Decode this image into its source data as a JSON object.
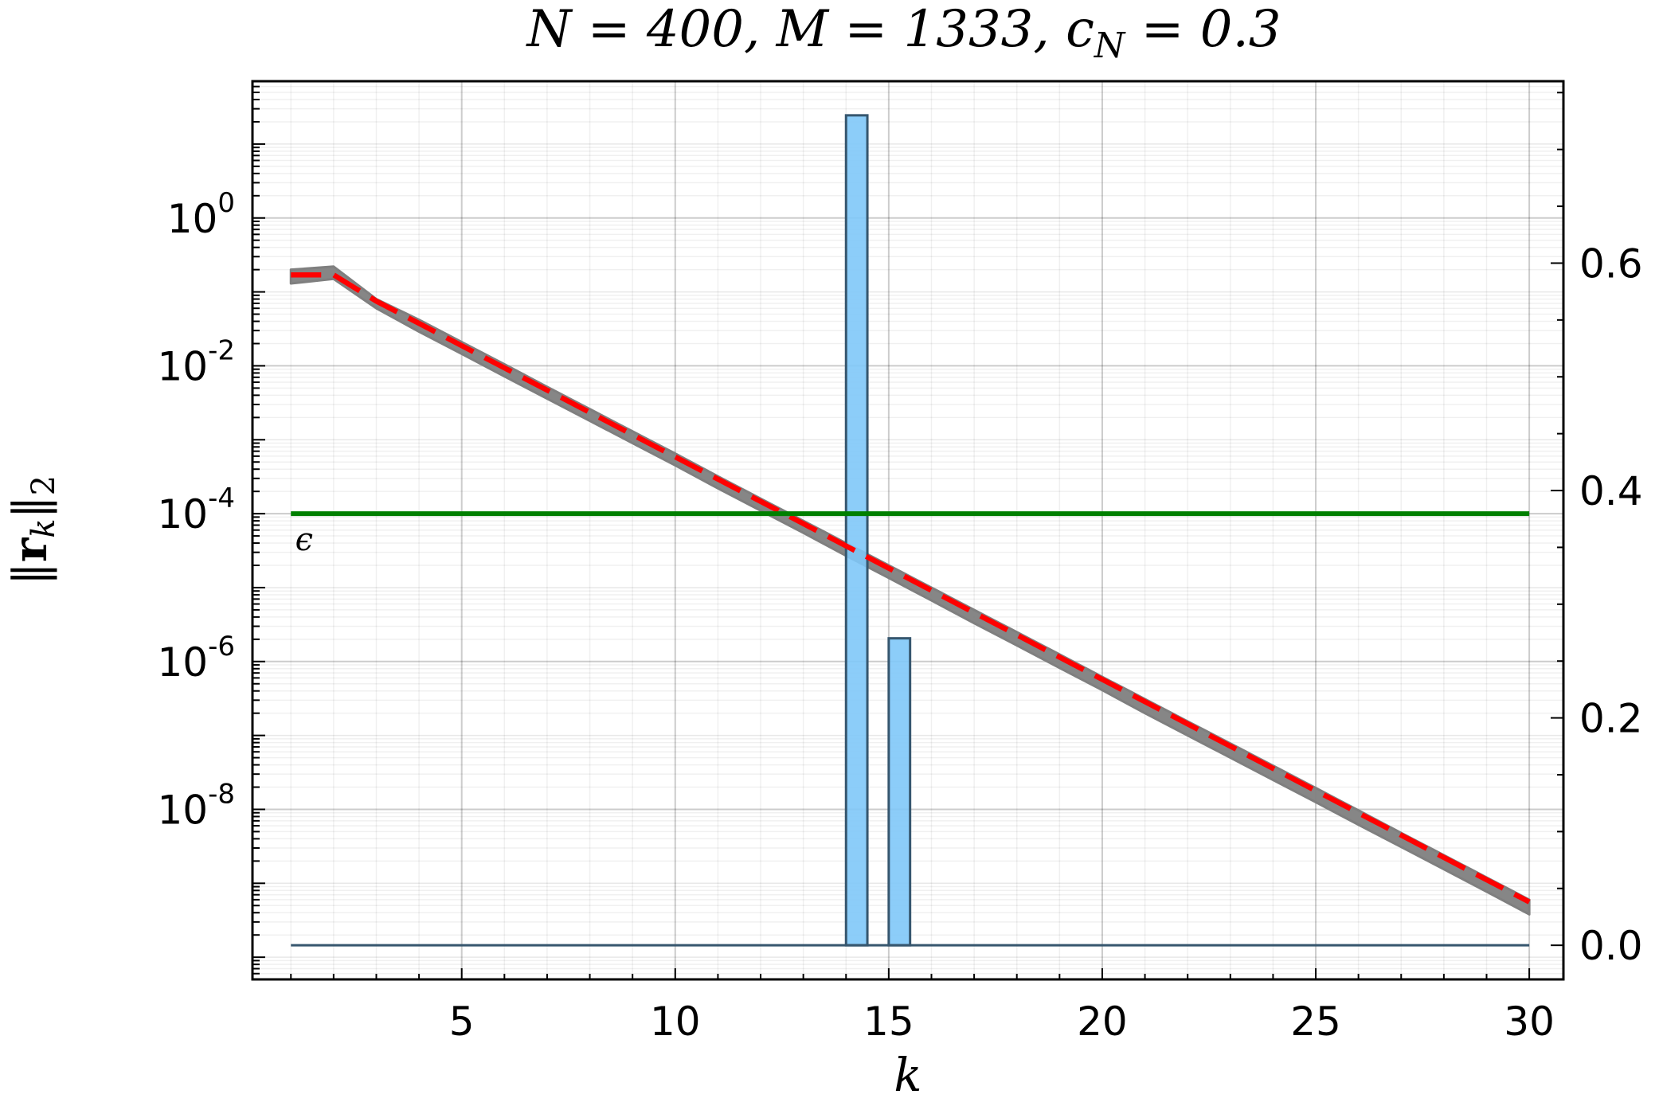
{
  "chart_data": {
    "type": "line",
    "title": "N = 400, M = 1333, c_N = 0.3",
    "title_parts": {
      "n": "N = 400, ",
      "m": "M = 1333, ",
      "c": "c",
      "c_sub": "N",
      "c_val": " = 0.3"
    },
    "xlabel": "k",
    "ylabel": "‖r_k‖_2",
    "ylabel_parts": {
      "open": "‖",
      "r": "r",
      "sub": "k",
      "close": "‖",
      "close_sub": "2"
    },
    "xlim": [
      0.1,
      30.8
    ],
    "ylim_log10": [
      -10.3,
      1.85
    ],
    "y_scale": "log",
    "y2lim": [
      -0.03,
      0.76
    ],
    "x_ticks": [
      5,
      10,
      15,
      20,
      25,
      30
    ],
    "x_tick_labels": [
      "5",
      "10",
      "15",
      "20",
      "25",
      "30"
    ],
    "y_ticks_exponents": [
      0,
      -2,
      -4,
      -6,
      -8
    ],
    "y_tick_base": "10",
    "y_tick_exponent_labels": [
      "0",
      "-2",
      "-4",
      "-6",
      "-8"
    ],
    "y2_ticks": [
      0.0,
      0.2,
      0.4,
      0.6
    ],
    "y2_tick_labels": [
      "0.0",
      "0.2",
      "0.4",
      "0.6"
    ],
    "grid": true,
    "epsilon_label": "ϵ",
    "series": [
      {
        "style": "band",
        "color": "#7f7f7f",
        "x": [
          1,
          2,
          3,
          4,
          5,
          6,
          7,
          8,
          9,
          10,
          11,
          12,
          13,
          14,
          15,
          16,
          17,
          18,
          19,
          20,
          21,
          22,
          23,
          24,
          25,
          26,
          27,
          28,
          29,
          30
        ],
        "upper": [
          0.2,
          0.22,
          0.08,
          0.042,
          0.021,
          0.0105,
          0.0052,
          0.0026,
          0.0013,
          0.00065,
          0.00032,
          0.00016,
          8e-05,
          4e-05,
          2e-05,
          1e-05,
          5e-06,
          2.5e-06,
          1.25e-06,
          6.2e-07,
          3.1e-07,
          1.55e-07,
          7.8e-08,
          3.9e-08,
          1.95e-08,
          9.7e-09,
          4.8e-09,
          2.4e-09,
          1.2e-09,
          6e-10
        ],
        "lower": [
          0.13,
          0.15,
          0.06,
          0.029,
          0.0145,
          0.0072,
          0.0036,
          0.0018,
          0.0009,
          0.00045,
          0.00022,
          0.00011,
          5.5e-05,
          2.7e-05,
          1.35e-05,
          6.7e-06,
          3.3e-06,
          1.65e-06,
          8.2e-07,
          4.1e-07,
          2e-07,
          1e-07,
          5e-08,
          2.5e-08,
          1.25e-08,
          6.2e-09,
          3.1e-09,
          1.55e-09,
          7.7e-10,
          3.8e-10
        ]
      },
      {
        "style": "dashed",
        "color": "#ff0000",
        "x": [
          1,
          2,
          3,
          4,
          5,
          6,
          7,
          8,
          9,
          10,
          11,
          12,
          13,
          14,
          15,
          16,
          17,
          18,
          19,
          20,
          21,
          22,
          23,
          24,
          25,
          26,
          27,
          28,
          29,
          30
        ],
        "values": [
          0.17,
          0.17,
          0.075,
          0.0375,
          0.01875,
          0.009375,
          0.0046875,
          0.00234375,
          0.001171875,
          0.0005859375,
          0.00029296875,
          0.000146484375,
          7.32421875e-05,
          3.662109375e-05,
          1.8310546875e-05,
          9.1552734375e-06,
          4.57763671875e-06,
          2.288818359375e-06,
          1.1444091796875e-06,
          5.7220458984375e-07,
          2.86102294921875e-07,
          1.430511474609375e-07,
          7.152557373046875e-08,
          3.5762786865234374e-08,
          1.7881393432617187e-08,
          8.940696716308593e-09,
          4.470348358154297e-09,
          2.2351741790771484e-09,
          1.1175870895385742e-09,
          5.587935447692871e-10
        ]
      },
      {
        "style": "hline",
        "color": "#008000",
        "y": 0.0001,
        "x_range": [
          1,
          30
        ]
      },
      {
        "style": "bar",
        "axis": "right",
        "color": "#7fc8f8",
        "edge_color": "#36566e",
        "bins": [
          [
            14,
            14.5
          ],
          [
            15,
            15.5
          ]
        ],
        "values": [
          0.73,
          0.27
        ]
      },
      {
        "style": "baseline",
        "axis": "right",
        "color": "#36566e",
        "y": 0.0,
        "x_range": [
          1,
          30
        ]
      }
    ]
  }
}
